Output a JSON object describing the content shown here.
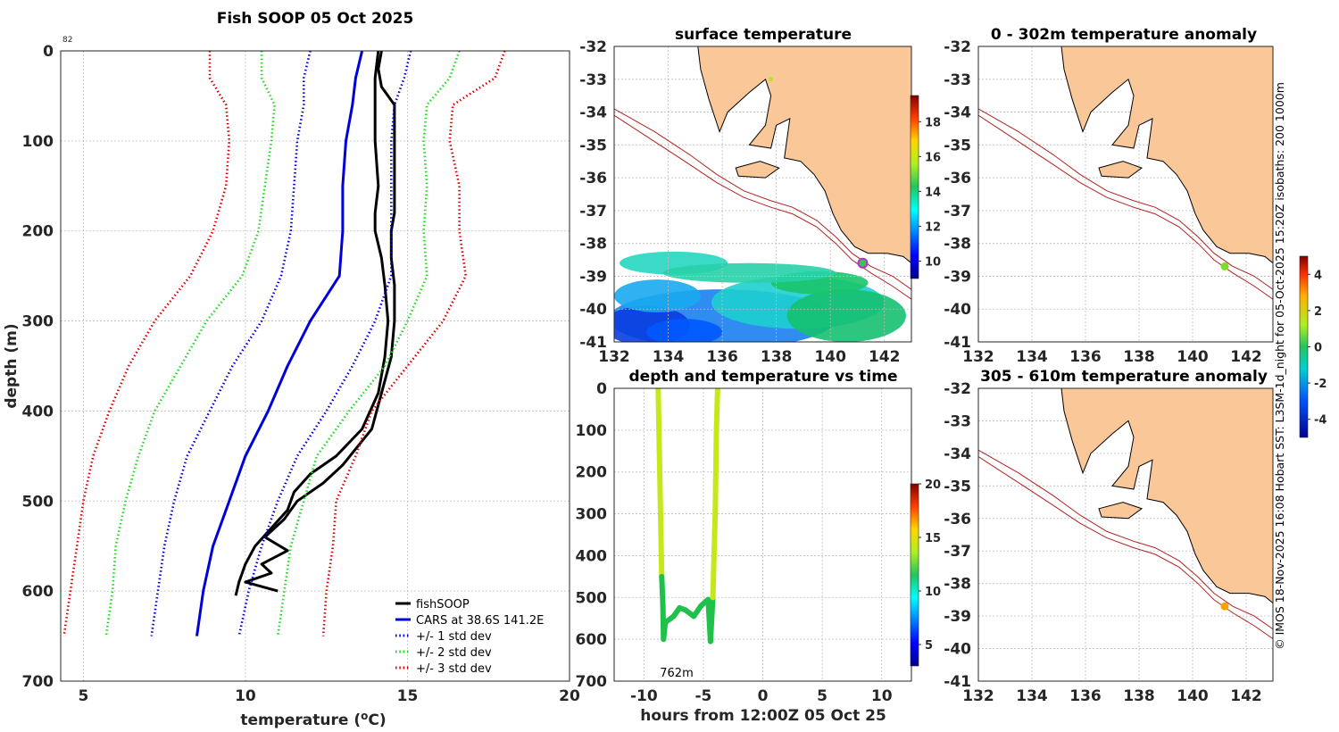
{
  "chart_data": [
    {
      "id": "profile",
      "type": "line",
      "title": "Fish SOOP 05 Oct 2025",
      "corner_label": "82",
      "xlabel": "temperature (°C)",
      "ylabel": "depth (m)",
      "xlim": [
        4.3,
        20
      ],
      "ylim": [
        700,
        0
      ],
      "xticks": [
        "5",
        "10",
        "15",
        "20"
      ],
      "yticks": [
        "0",
        "100",
        "200",
        "300",
        "400",
        "500",
        "600",
        "700"
      ],
      "legend_position": "bottom-right",
      "series": [
        {
          "name": "fishSOOP",
          "color": "#000000",
          "style": "solid",
          "depth": [
            0,
            20,
            40,
            60,
            100,
            150,
            180,
            200,
            230,
            260,
            300,
            340,
            380,
            420,
            460,
            480,
            500,
            520,
            540,
            555,
            570,
            580,
            590,
            600
          ],
          "temp": [
            14.2,
            14.1,
            14.2,
            14.6,
            14.6,
            14.6,
            14.6,
            14.5,
            14.5,
            14.6,
            14.6,
            14.5,
            14.2,
            13.9,
            13.0,
            12.4,
            11.6,
            11.2,
            10.6,
            11.3,
            10.5,
            10.8,
            10.0,
            11.0
          ]
        },
        {
          "name": "fishSOOP ",
          "color": "#000000",
          "style": "solid",
          "depth": [
            0,
            30,
            60,
            100,
            150,
            180,
            200,
            230,
            260,
            300,
            340,
            380,
            420,
            450,
            470,
            490,
            510,
            530,
            550,
            570,
            590,
            605
          ],
          "temp": [
            14.1,
            14.0,
            14.0,
            14.0,
            14.1,
            14.0,
            14.0,
            14.2,
            14.3,
            14.4,
            14.3,
            14.1,
            13.6,
            12.8,
            12.0,
            11.5,
            11.3,
            10.8,
            10.3,
            10.0,
            9.8,
            9.7
          ]
        },
        {
          "name": "CARS at 38.6S 141.2E",
          "color": "#0000d8",
          "style": "solid",
          "depth": [
            0,
            30,
            60,
            100,
            150,
            200,
            250,
            300,
            350,
            400,
            450,
            500,
            550,
            600,
            650
          ],
          "temp": [
            13.6,
            13.4,
            13.3,
            13.1,
            13.0,
            13.0,
            12.9,
            12.0,
            11.3,
            10.7,
            10.0,
            9.5,
            9.0,
            8.7,
            8.5
          ]
        },
        {
          "name": "+/- 1 std dev",
          "color": "#0000d8",
          "style": "dotted",
          "depth": [
            0,
            30,
            60,
            100,
            150,
            200,
            250,
            300,
            350,
            400,
            450,
            500,
            550,
            600,
            650
          ],
          "temp": [
            12.0,
            11.8,
            11.8,
            11.6,
            11.5,
            11.4,
            11.1,
            10.5,
            9.6,
            8.9,
            8.2,
            7.8,
            7.5,
            7.3,
            7.1
          ]
        },
        {
          "name": "+/- 1 std dev ",
          "color": "#0000d8",
          "style": "dotted",
          "depth": [
            0,
            30,
            60,
            100,
            150,
            200,
            250,
            300,
            350,
            400,
            450,
            500,
            550,
            600,
            650
          ],
          "temp": [
            15.1,
            14.9,
            14.6,
            14.5,
            14.5,
            14.5,
            14.5,
            14.0,
            13.3,
            12.5,
            11.6,
            11.0,
            10.5,
            10.1,
            9.8
          ]
        },
        {
          "name": "+/- 2 std dev",
          "color": "#22d822",
          "style": "dotted",
          "depth": [
            0,
            30,
            60,
            100,
            150,
            200,
            250,
            300,
            350,
            400,
            450,
            500,
            550,
            600,
            650
          ],
          "temp": [
            10.5,
            10.5,
            10.9,
            10.8,
            10.6,
            10.4,
            9.9,
            8.8,
            8.0,
            7.2,
            6.7,
            6.3,
            6.0,
            5.9,
            5.7
          ]
        },
        {
          "name": "+/- 2 std dev ",
          "color": "#22d822",
          "style": "dotted",
          "depth": [
            0,
            30,
            60,
            100,
            150,
            200,
            250,
            300,
            350,
            400,
            450,
            500,
            550,
            600,
            650
          ],
          "temp": [
            16.6,
            16.3,
            15.6,
            15.5,
            15.6,
            15.5,
            15.6,
            15.0,
            14.3,
            13.2,
            12.2,
            11.8,
            11.4,
            11.2,
            11.0
          ]
        },
        {
          "name": "+/- 3 std dev",
          "color": "#e00000",
          "style": "dotted",
          "depth": [
            0,
            30,
            60,
            100,
            150,
            200,
            250,
            300,
            350,
            400,
            450,
            500,
            550,
            600,
            650
          ],
          "temp": [
            8.9,
            8.9,
            9.4,
            9.5,
            9.4,
            9.0,
            8.3,
            7.2,
            6.4,
            5.8,
            5.3,
            5.0,
            4.8,
            4.6,
            4.4
          ]
        },
        {
          "name": "+/- 3 std dev ",
          "color": "#e00000",
          "style": "dotted",
          "depth": [
            0,
            30,
            60,
            100,
            150,
            200,
            250,
            300,
            350,
            400,
            450,
            500,
            550,
            600,
            650
          ],
          "temp": [
            18.0,
            17.7,
            16.4,
            16.3,
            16.6,
            16.6,
            16.8,
            16.1,
            15.0,
            13.9,
            13.4,
            12.8,
            12.7,
            12.5,
            12.4
          ]
        }
      ],
      "legend": [
        "fishSOOP",
        "CARS at 38.6S 141.2E",
        "+/- 1 std dev",
        "+/- 2 std dev",
        "+/- 3 std dev"
      ]
    },
    {
      "id": "sst_map",
      "type": "heatmap",
      "title": "surface temperature",
      "xlim": [
        132,
        143
      ],
      "ylim": [
        -41,
        -32
      ],
      "xticks": [
        "132",
        "134",
        "136",
        "138",
        "140",
        "142"
      ],
      "yticks": [
        "-32",
        "-33",
        "-34",
        "-35",
        "-36",
        "-37",
        "-38",
        "-39",
        "-40",
        "-41"
      ],
      "colorbar_ticks": [
        "18",
        "16",
        "14",
        "12",
        "10"
      ],
      "colorbar_range": [
        9,
        19.5
      ],
      "markers": [
        {
          "lon": 141.2,
          "lat": -38.6,
          "color": "#c026d3"
        },
        {
          "lon": 137.8,
          "lat": -33.0,
          "color": "#b6e615"
        }
      ]
    },
    {
      "id": "depth_time",
      "type": "scatter",
      "title": "depth and temperature vs time",
      "xlabel": "hours from 12:00Z 05 Oct 25",
      "xlim": [
        -12.5,
        12.5
      ],
      "ylim": [
        700,
        0
      ],
      "xticks": [
        "-10",
        "-5",
        "0",
        "5",
        "10"
      ],
      "yticks": [
        "0",
        "100",
        "200",
        "300",
        "400",
        "500",
        "600",
        "700"
      ],
      "annotation": "762m",
      "colorbar_ticks": [
        "20",
        "15",
        "10",
        "5"
      ],
      "colorbar_range": [
        3,
        20
      ],
      "points": [
        [
          -8.8,
          0
        ],
        [
          -8.7,
          150
        ],
        [
          -8.6,
          300
        ],
        [
          -8.5,
          450
        ],
        [
          -8.4,
          520
        ],
        [
          -8.35,
          600
        ],
        [
          -8.2,
          560
        ],
        [
          -7.5,
          545
        ],
        [
          -7.0,
          525
        ],
        [
          -6.5,
          530
        ],
        [
          -5.8,
          545
        ],
        [
          -5.2,
          520
        ],
        [
          -4.6,
          505
        ],
        [
          -4.4,
          605
        ],
        [
          -4.2,
          500
        ],
        [
          -4.0,
          300
        ],
        [
          -3.9,
          100
        ],
        [
          -3.8,
          0
        ]
      ]
    },
    {
      "id": "anom_upper",
      "type": "heatmap",
      "title": "0 - 302m temperature anomaly",
      "xlim": [
        132,
        143
      ],
      "ylim": [
        -41,
        -32
      ],
      "xticks": [
        "132",
        "134",
        "136",
        "138",
        "140",
        "142"
      ],
      "yticks": [
        "-32",
        "-33",
        "-34",
        "-35",
        "-36",
        "-37",
        "-38",
        "-39",
        "-40",
        "-41"
      ],
      "markers": [
        {
          "lon": 141.2,
          "lat": -38.7,
          "color": "#7fdc2a"
        }
      ]
    },
    {
      "id": "anom_lower",
      "type": "heatmap",
      "title": "305 - 610m temperature anomaly",
      "xlim": [
        132,
        143
      ],
      "ylim": [
        -41,
        -32
      ],
      "xticks": [
        "132",
        "134",
        "136",
        "138",
        "140",
        "142"
      ],
      "yticks": [
        "-32",
        "-33",
        "-34",
        "-35",
        "-36",
        "-37",
        "-38",
        "-39",
        "-40",
        "-41"
      ],
      "markers": [
        {
          "lon": 141.2,
          "lat": -38.7,
          "color": "#f5a300"
        }
      ]
    }
  ],
  "anomaly_colorbar_ticks": [
    "4",
    "2",
    "0",
    "-2",
    "-4"
  ],
  "anomaly_colorbar_range": [
    -5,
    5
  ],
  "side_credit": "© IMOS 18-Nov-2025 16:08 Hobart SST: L3SM-1d_night for 05-Oct-2025 15:20Z isobaths: 200  1000m",
  "colors": {
    "land": "#fac898",
    "isobath": "#b22222"
  }
}
